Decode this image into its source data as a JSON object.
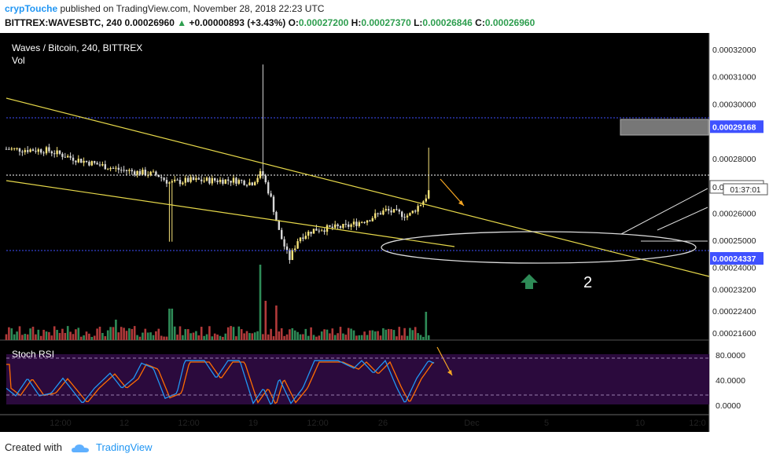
{
  "header": {
    "author": "crypTouche",
    "published": "published on TradingView.com, November 28, 2018 22:23 UTC",
    "symbol_line": "BITTREX:WAVESBTC, 240",
    "last": "0.00026960",
    "change_arrow": "▲",
    "change": "+0.00000893 (+3.43%)",
    "o_label": "O:",
    "o": "0.00027200",
    "h_label": "H:",
    "h": "0.00027370",
    "l_label": "L:",
    "l": "0.00026846",
    "c_label": "C:",
    "c": "0.00026960"
  },
  "pane": {
    "title": "Waves / Bitcoin, 240, BITTREX",
    "vol_label": "Vol",
    "stoch_label": "Stoch RSI"
  },
  "chart_data": {
    "type": "candlestick",
    "x_ticks": [
      "12:00",
      "12",
      "12:00",
      "19",
      "12:00",
      "26",
      "Dec",
      "5",
      "10",
      "12:0"
    ],
    "price_ticks": [
      "0.00032000",
      "0.00031000",
      "0.00030000",
      "0.00028000",
      "0.00026000",
      "0.00025000",
      "0.00024000",
      "0.00023200",
      "0.00022400",
      "0.00021600"
    ],
    "ylim": [
      0.000216,
      0.000326
    ],
    "price_labels": [
      {
        "text": "0.00029168",
        "value": 0.00029168,
        "kind": "level"
      },
      {
        "text": "0.00026960",
        "value": 0.0002696,
        "kind": "last"
      },
      {
        "text": "0.00024337",
        "value": 0.00024337,
        "kind": "level"
      }
    ],
    "countdown": "01:37:01",
    "stoch_ticks": [
      "80.0000",
      "40.0000",
      "0.0000"
    ],
    "stoch_ylim": [
      0,
      100
    ],
    "annotation": "2",
    "colors": {
      "background": "#000000",
      "up": "#f7e37a",
      "down": "#d8d8d8",
      "trendline": "#e6d84a",
      "level": "#3f51ff",
      "stoch_k": "#2196f3",
      "stoch_d": "#ff6d00",
      "stoch_bg": "#2b0a3d",
      "vol_up": "#2e8b57",
      "vol_down": "#b23a3a",
      "arrow": "#2e8b57"
    }
  },
  "footer": {
    "created": "Created with",
    "brand": "TradingView"
  }
}
